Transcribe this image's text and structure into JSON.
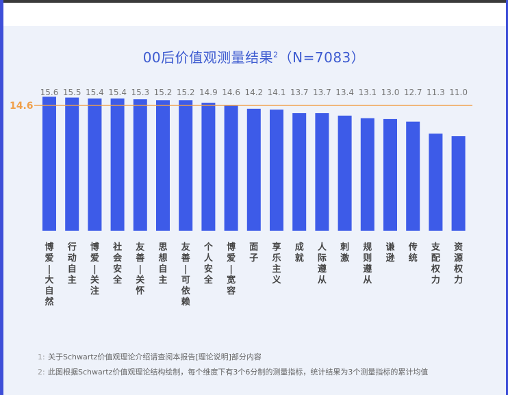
{
  "chart_data": {
    "type": "bar",
    "title": "00后价值观测量结果",
    "title_sup": "2",
    "title_suffix": "（N=7083）",
    "categories": [
      "博爱-大自然",
      "行动自主",
      "博爱-关注",
      "社会安全",
      "友善-关怀",
      "思想自主",
      "友善-可依赖",
      "个人安全",
      "博爱-宽容",
      "面子",
      "享乐主义",
      "成就",
      "人际遵从",
      "刺激",
      "规则遵从",
      "谦逊",
      "传统",
      "支配权力",
      "资源权力"
    ],
    "value_labels": [
      "15.6",
      "15.5",
      "15.4",
      "15.4",
      "15.3",
      "15.2",
      "15.2",
      "14.9",
      "14.6",
      "14.2",
      "14.1",
      "13.7",
      "13.7",
      "13.4",
      "13.1",
      "13.0",
      "12.7",
      "11.3",
      "11.0"
    ],
    "values": [
      15.6,
      15.5,
      15.4,
      15.4,
      15.3,
      15.2,
      15.2,
      14.9,
      14.6,
      14.2,
      14.1,
      13.7,
      13.7,
      13.4,
      13.1,
      13.0,
      12.7,
      11.3,
      11.0
    ],
    "reference_line": {
      "value": 14.6,
      "label": "14.6"
    },
    "ylim": [
      0,
      16.5
    ],
    "grid": false,
    "colors": {
      "bar": "#3d5be8",
      "reference": "#f0a04a",
      "title": "#3d5bd0",
      "background": "#eef2fa"
    }
  },
  "notes": [
    {
      "num": "1:",
      "text": "关于Schwartz价值观理论介绍请查阅本报告[理论说明]部分内容"
    },
    {
      "num": "2:",
      "text": "此图根据Schwartz价值观理论结构绘制，每个维度下有3个6分制的测量指标，统计结果为3个测量指标的累计均值"
    }
  ]
}
